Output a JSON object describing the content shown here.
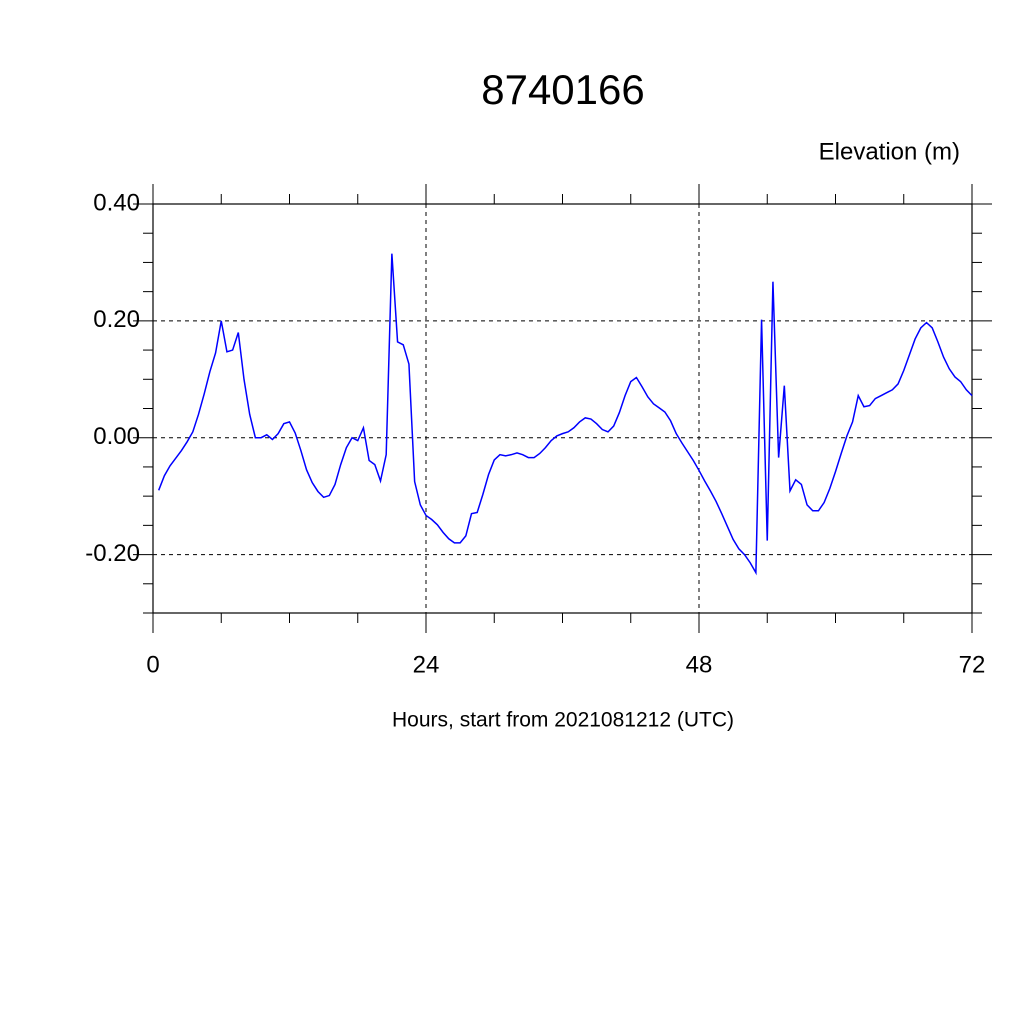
{
  "chart_data": {
    "type": "line",
    "title": "8740166",
    "ylabel": "Elevation (m)",
    "xlabel": "Hours, start from 2021081212 (UTC)",
    "xlim": [
      0,
      72
    ],
    "ylim": [
      -0.3,
      0.4
    ],
    "xticks": [
      0,
      24,
      48,
      72
    ],
    "xminorticks": [
      6,
      12,
      18,
      30,
      36,
      42,
      54,
      60,
      66
    ],
    "yticks": [
      {
        "value": 0.4,
        "label": "0.40"
      },
      {
        "value": 0.2,
        "label": "0.20"
      },
      {
        "value": 0,
        "label": "0.00"
      },
      {
        "value": -0.2,
        "label": "-0.20"
      }
    ],
    "yminorticks": [
      -0.3,
      -0.25,
      -0.15,
      -0.1,
      -0.05,
      0.05,
      0.1,
      0.15,
      0.25,
      0.3,
      0.35
    ],
    "grid": true,
    "x": [
      0.5,
      1,
      1.5,
      2,
      2.5,
      3,
      3.5,
      4,
      4.5,
      5,
      5.5,
      6,
      6.5,
      7,
      7.5,
      8,
      8.5,
      9,
      9.5,
      10,
      10.5,
      11,
      11.5,
      12,
      12.5,
      13,
      13.5,
      14,
      14.5,
      15,
      15.5,
      16,
      16.5,
      17,
      17.5,
      18,
      18.5,
      19,
      19.5,
      20,
      20.5,
      21,
      21.5,
      22,
      22.5,
      23,
      23.5,
      24,
      24.5,
      25,
      25.5,
      26,
      26.5,
      27,
      27.5,
      28,
      28.5,
      29,
      29.5,
      30,
      30.5,
      31,
      31.5,
      32,
      32.5,
      33,
      33.5,
      34,
      34.5,
      35,
      35.5,
      36,
      36.5,
      37,
      37.5,
      38,
      38.5,
      39,
      39.5,
      40,
      40.5,
      41,
      41.5,
      42,
      42.5,
      43,
      43.5,
      44,
      44.5,
      45,
      45.5,
      46,
      46.5,
      47,
      47.5,
      48,
      48.5,
      49,
      49.5,
      50,
      50.5,
      51,
      51.5,
      52,
      52.5,
      53,
      53.5,
      54,
      54.5,
      55,
      55.5,
      56,
      56.5,
      57,
      57.5,
      58,
      58.5,
      59,
      59.5,
      60,
      60.5,
      61,
      61.5,
      62,
      62.5,
      63,
      63.5,
      64,
      64.5,
      65,
      65.5,
      66,
      66.5,
      67,
      67.5,
      68,
      68.5,
      69,
      69.5,
      70,
      70.5,
      71,
      71.5,
      72
    ],
    "series": [
      {
        "name": "Elevation",
        "color": "#0000ff",
        "values": [
          -0.09,
          -0.065,
          -0.048,
          -0.035,
          -0.022,
          -0.007,
          0.01,
          0.04,
          0.075,
          0.113,
          0.145,
          0.2,
          0.147,
          0.15,
          0.18,
          0.1,
          0.04,
          0,
          0,
          0.005,
          -0.003,
          0.007,
          0.024,
          0.027,
          0.008,
          -0.022,
          -0.055,
          -0.077,
          -0.092,
          -0.102,
          -0.099,
          -0.08,
          -0.046,
          -0.017,
          0,
          -0.005,
          0.017,
          -0.039,
          -0.046,
          -0.074,
          -0.029,
          0.315,
          0.164,
          0.159,
          0.126,
          -0.075,
          -0.115,
          -0.133,
          -0.14,
          -0.149,
          -0.162,
          -0.173,
          -0.18,
          -0.18,
          -0.168,
          -0.13,
          -0.128,
          -0.097,
          -0.063,
          -0.038,
          -0.029,
          -0.031,
          -0.029,
          -0.026,
          -0.029,
          -0.034,
          -0.034,
          -0.027,
          -0.017,
          -0.005,
          0.003,
          0.007,
          0.01,
          0.017,
          0.027,
          0.034,
          0.032,
          0.024,
          0.014,
          0.01,
          0.02,
          0.043,
          0.072,
          0.096,
          0.103,
          0.087,
          0.07,
          0.058,
          0.051,
          0.044,
          0.029,
          0.007,
          -0.009,
          -0.024,
          -0.039,
          -0.056,
          -0.074,
          -0.091,
          -0.109,
          -0.13,
          -0.152,
          -0.174,
          -0.19,
          -0.2,
          -0.214,
          -0.231,
          0.202,
          -0.176,
          0.267,
          -0.034,
          0.089,
          -0.091,
          -0.072,
          -0.08,
          -0.115,
          -0.125,
          -0.125,
          -0.111,
          -0.087,
          -0.058,
          -0.027,
          0.003,
          0.027,
          0.072,
          0.053,
          0.055,
          0.067,
          0.072,
          0.077,
          0.082,
          0.092,
          0.115,
          0.142,
          0.169,
          0.188,
          0.197,
          0.188,
          0.164,
          0.138,
          0.118,
          0.104,
          0.096,
          0.082,
          0.072
        ]
      }
    ]
  }
}
